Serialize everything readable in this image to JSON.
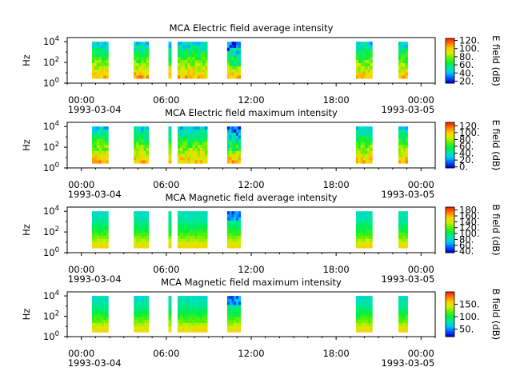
{
  "figure": {
    "colorscale": [
      "#0000d0",
      "#0060ff",
      "#00c8ff",
      "#00e8a0",
      "#00f040",
      "#60f000",
      "#d0f000",
      "#ffd000",
      "#ff8000",
      "#ff2000"
    ]
  },
  "chart_data": [
    {
      "type": "heatmap",
      "title": "MCA  Electric field average intensity",
      "ylabel": "Hz",
      "ytick_exponents": [
        "0",
        "2",
        "4"
      ],
      "xticks": [
        "00:00",
        "06:00",
        "12:00",
        "18:00",
        "00:00"
      ],
      "date_start": "1993-03-04",
      "date_end": "1993-03-05",
      "colorbar": {
        "label": "E field (dB)",
        "ticks": [
          "20.",
          "40.",
          "60.",
          "80.",
          "100.",
          "120."
        ],
        "range": [
          15,
          125
        ]
      },
      "data_intervals_hours": [
        [
          0.75,
          1.9
        ],
        [
          3.7,
          4.75
        ],
        [
          6.15,
          6.35
        ],
        [
          6.8,
          8.9
        ],
        [
          10.3,
          11.25
        ],
        [
          19.4,
          20.55
        ],
        [
          22.4,
          23.05
        ]
      ]
    },
    {
      "type": "heatmap",
      "title": "MCA  Electric field maximum intensity",
      "ylabel": "Hz",
      "ytick_exponents": [
        "0",
        "2",
        "4"
      ],
      "xticks": [
        "00:00",
        "06:00",
        "12:00",
        "18:00",
        "00:00"
      ],
      "date_start": "1993-03-04",
      "date_end": "1993-03-05",
      "colorbar": {
        "label": "E field (dB)",
        "ticks": [
          "0.",
          "20.",
          "40.",
          "60.",
          "80.",
          "100.",
          "120."
        ],
        "range": [
          -3,
          130
        ]
      },
      "data_intervals_hours": [
        [
          0.75,
          1.9
        ],
        [
          3.7,
          4.75
        ],
        [
          6.15,
          6.35
        ],
        [
          6.8,
          8.9
        ],
        [
          10.3,
          11.25
        ],
        [
          19.4,
          20.55
        ],
        [
          22.4,
          23.05
        ]
      ]
    },
    {
      "type": "heatmap",
      "title": "MCA  Magnetic field average intensity",
      "ylabel": "Hz",
      "ytick_exponents": [
        "0",
        "2",
        "4"
      ],
      "xticks": [
        "00:00",
        "06:00",
        "12:00",
        "18:00",
        "00:00"
      ],
      "date_start": "1993-03-04",
      "date_end": "1993-03-05",
      "colorbar": {
        "label": "B field (dB)",
        "ticks": [
          "40.",
          "60.",
          "80.",
          "100.",
          "120.",
          "140.",
          "160.",
          "180."
        ],
        "range": [
          35,
          190
        ]
      },
      "data_intervals_hours": [
        [
          0.75,
          1.9
        ],
        [
          3.7,
          4.75
        ],
        [
          6.15,
          6.35
        ],
        [
          6.8,
          8.9
        ],
        [
          10.3,
          11.25
        ],
        [
          19.4,
          20.55
        ],
        [
          22.4,
          23.05
        ]
      ]
    },
    {
      "type": "heatmap",
      "title": "MCA  Magnetic field maximum intensity",
      "ylabel": "Hz",
      "ytick_exponents": [
        "0",
        "2",
        "4"
      ],
      "xticks": [
        "00:00",
        "06:00",
        "12:00",
        "18:00",
        "00:00"
      ],
      "date_start": "1993-03-04",
      "date_end": "1993-03-05",
      "colorbar": {
        "label": "B field (dB)",
        "ticks": [
          "50.",
          "100.",
          "150."
        ],
        "range": [
          20,
          200
        ]
      },
      "data_intervals_hours": [
        [
          0.75,
          1.9
        ],
        [
          3.7,
          4.75
        ],
        [
          6.15,
          6.35
        ],
        [
          6.8,
          8.9
        ],
        [
          10.3,
          11.25
        ],
        [
          19.4,
          20.55
        ],
        [
          22.4,
          23.05
        ]
      ]
    }
  ]
}
